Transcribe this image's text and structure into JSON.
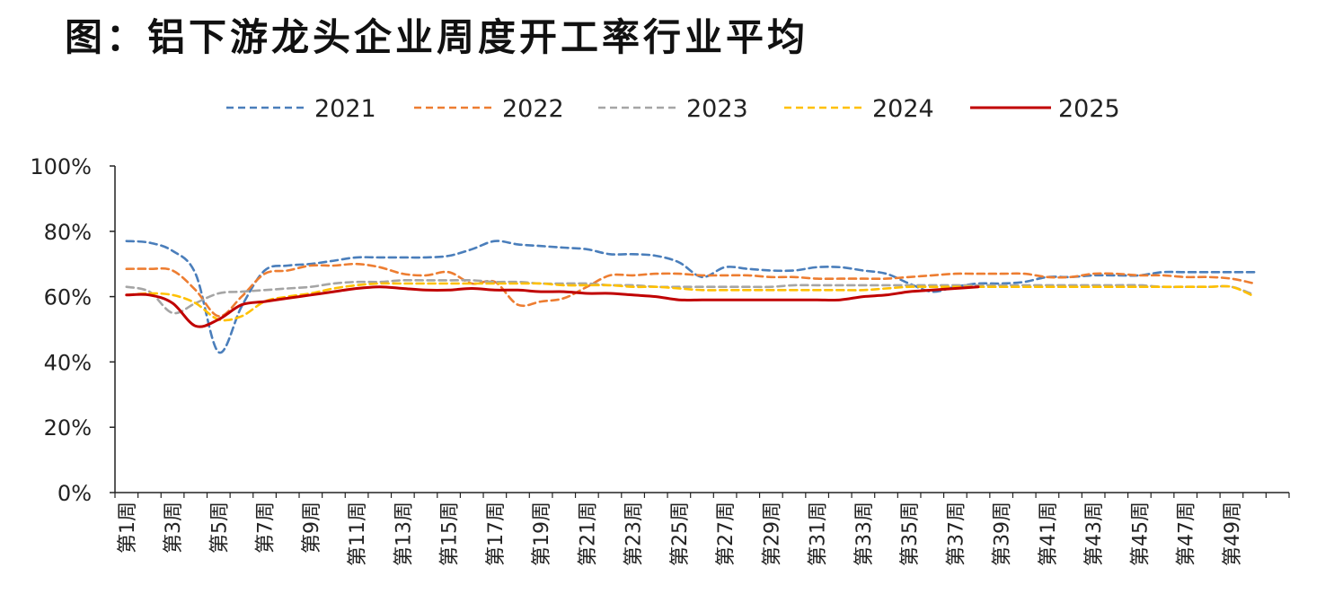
{
  "page_title": "图：铝下游龙头企业周度开工率行业平均",
  "chart_data": {
    "type": "line",
    "title": "",
    "xlabel": "",
    "ylabel": "",
    "ylim": [
      0,
      100
    ],
    "yticks": [
      "0%",
      "20%",
      "40%",
      "60%",
      "80%",
      "100%"
    ],
    "ytick_values": [
      0,
      20,
      40,
      60,
      80,
      100
    ],
    "x_tick_labels": [
      "第1周",
      "第3周",
      "第5周",
      "第7周",
      "第9周",
      "第11周",
      "第13周",
      "第15周",
      "第17周",
      "第19周",
      "第21周",
      "第23周",
      "第25周",
      "第27周",
      "第29周",
      "第31周",
      "第33周",
      "第35周",
      "第37周",
      "第39周",
      "第41周",
      "第43周",
      "第45周",
      "第47周",
      "第49周"
    ],
    "x_weeks": [
      1,
      2,
      3,
      4,
      5,
      6,
      7,
      8,
      9,
      10,
      11,
      12,
      13,
      14,
      15,
      16,
      17,
      18,
      19,
      20,
      21,
      22,
      23,
      24,
      25,
      26,
      27,
      28,
      29,
      30,
      31,
      32,
      33,
      34,
      35,
      36,
      37,
      38,
      39,
      40,
      41,
      42,
      43,
      44,
      45,
      46,
      47,
      48,
      49,
      50,
      51
    ],
    "legend_position": "top",
    "series": [
      {
        "name": "2021",
        "color": "#4a7ebb",
        "dash": "dashed",
        "values": [
          77,
          76.5,
          74,
          67,
          43,
          57,
          68,
          69.5,
          70,
          71,
          72,
          72,
          72,
          72,
          72.5,
          74.5,
          77,
          76,
          75.5,
          75,
          74.5,
          73,
          73,
          72.5,
          70.5,
          66,
          69,
          68.5,
          68,
          68,
          69,
          69,
          68,
          67,
          64,
          61.5,
          63,
          64,
          64,
          64.5,
          66,
          66,
          66.5,
          66.5,
          66.5,
          67.5,
          67.5,
          67.5,
          67.5,
          67.5,
          null
        ]
      },
      {
        "name": "2022",
        "color": "#ed7d31",
        "dash": "dashed",
        "values": [
          68.5,
          68.5,
          68,
          62,
          54,
          60,
          67,
          68,
          69.5,
          69.5,
          70,
          69,
          67,
          66.5,
          67.5,
          64,
          64.5,
          57.5,
          58.5,
          59.5,
          63,
          66.5,
          66.5,
          67,
          67,
          66.5,
          66.5,
          66.5,
          66,
          66,
          65.5,
          65.5,
          65.5,
          65.5,
          66,
          66.5,
          67,
          67,
          67,
          67,
          66,
          66,
          67,
          67,
          66.5,
          66.5,
          66,
          66,
          65.5,
          64,
          null
        ]
      },
      {
        "name": "2023",
        "color": "#a5a5a5",
        "dash": "dashed",
        "values": [
          63,
          61.5,
          55,
          58,
          61,
          61.5,
          62,
          62.5,
          63,
          64,
          64.5,
          64.5,
          65,
          65,
          65,
          65,
          64.5,
          64.5,
          64,
          64,
          64,
          63.5,
          63.5,
          63,
          63,
          63,
          63,
          63,
          63,
          63.5,
          63.5,
          63.5,
          63.5,
          63.5,
          63.5,
          63.5,
          63.5,
          63.5,
          63.5,
          63.5,
          63.5,
          63.5,
          63.5,
          63.5,
          63.5,
          63,
          63,
          63,
          63,
          60.5,
          null
        ]
      },
      {
        "name": "2024",
        "color": "#ffc000",
        "dash": "dashed",
        "values": [
          60.5,
          61,
          60.5,
          58,
          53,
          54,
          58.5,
          60,
          61,
          62.5,
          63.5,
          64,
          64,
          64,
          64,
          64,
          64,
          64,
          64,
          63.5,
          63.5,
          63.5,
          63,
          63,
          62.5,
          62,
          62,
          62,
          62,
          62,
          62,
          62,
          62,
          62.5,
          63,
          63,
          63,
          63,
          63,
          63,
          63,
          63,
          63,
          63,
          63,
          63,
          63,
          63,
          63,
          60,
          null
        ]
      },
      {
        "name": "2025",
        "color": "#c00000",
        "dash": "solid",
        "values": [
          60.5,
          60.5,
          58,
          51,
          53,
          57.5,
          58.5,
          59.5,
          60.5,
          61.5,
          62.5,
          63,
          62.5,
          62,
          62,
          62.5,
          62,
          62,
          61.5,
          61.5,
          61,
          61,
          60.5,
          60,
          59,
          59,
          59,
          59,
          59,
          59,
          59,
          59,
          60,
          60.5,
          61.5,
          62,
          62.5,
          63,
          null,
          null,
          null,
          null,
          null,
          null,
          null,
          null,
          null,
          null,
          null,
          null,
          null
        ]
      }
    ]
  }
}
